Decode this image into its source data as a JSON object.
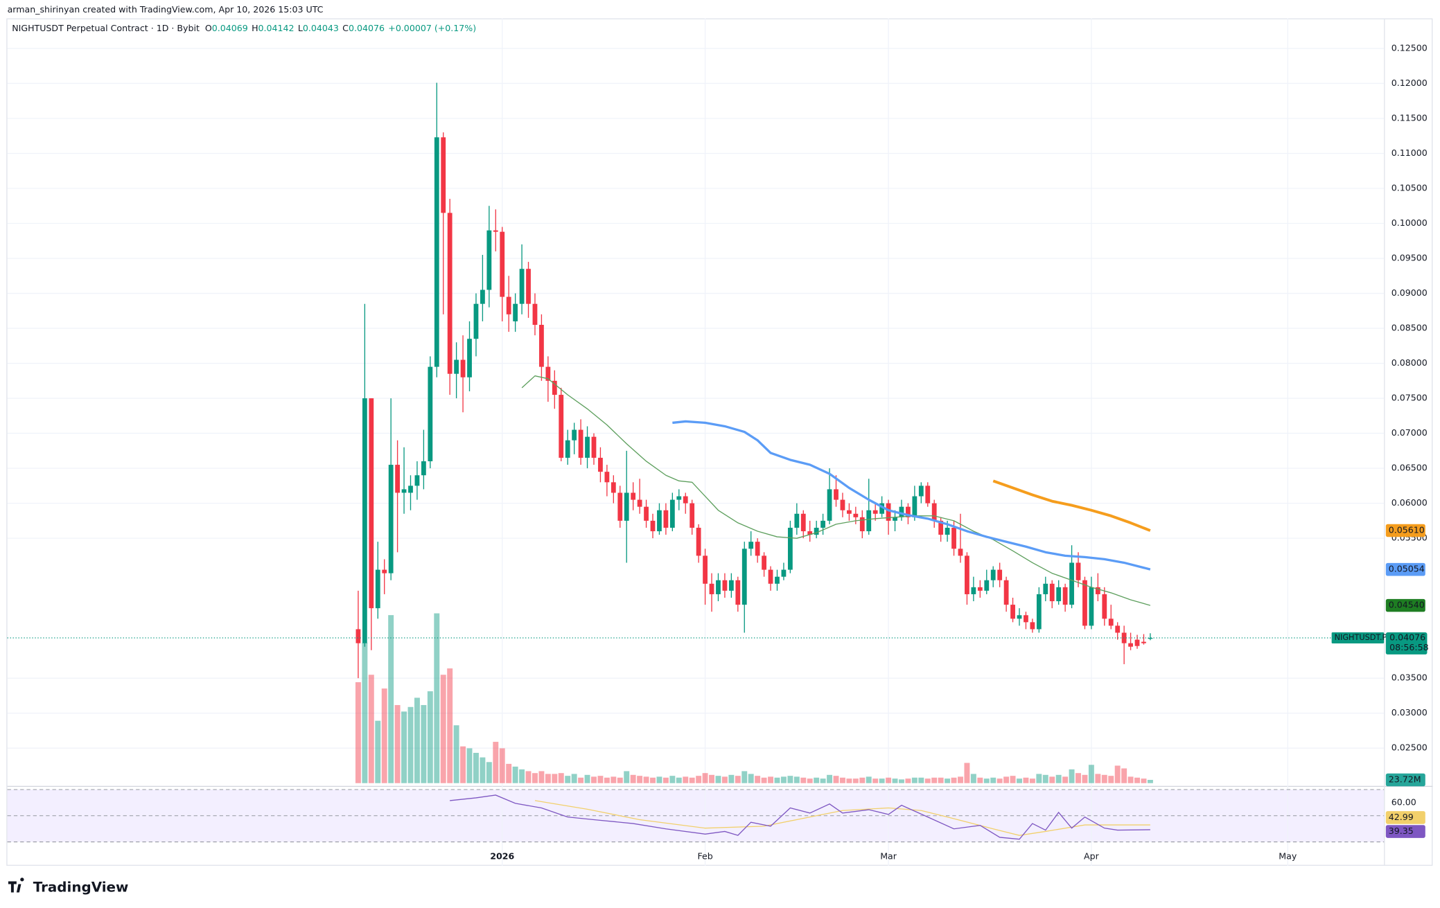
{
  "header": {
    "attribution": "arman_shirinyan created with TradingView.com, Apr 10, 2026 15:03 UTC"
  },
  "footer": {
    "logo": "TradingView"
  },
  "chart_data": {
    "type": "candlestick",
    "title": "NIGHTUSDT Perpetual Contract · 1D · Bybit",
    "ohlc_labels": [
      "O",
      "H",
      "L",
      "C"
    ],
    "change": "+0.00007",
    "change_pct": "(+0.17%)",
    "symbol_tag": "NIGHTUSDT.P",
    "countdown": "08:56:58",
    "up_color": "#089981",
    "down_color": "#f23645",
    "grid": true,
    "xlim": [
      -53.6,
      156.7
    ],
    "xticks": [
      {
        "value": 22,
        "label": "2026"
      },
      {
        "value": 53,
        "label": "Feb"
      },
      {
        "value": 81,
        "label": "Mar"
      },
      {
        "value": 112,
        "label": "Apr"
      },
      {
        "value": 142,
        "label": "May"
      }
    ],
    "ylim": [
      0.02,
      0.1293
    ],
    "yticks": [
      {
        "value": 0.125,
        "label": "0.12500"
      },
      {
        "value": 0.12,
        "label": "0.12000"
      },
      {
        "value": 0.115,
        "label": "0.11500"
      },
      {
        "value": 0.11,
        "label": "0.11000"
      },
      {
        "value": 0.105,
        "label": "0.10500"
      },
      {
        "value": 0.1,
        "label": "0.10000"
      },
      {
        "value": 0.095,
        "label": "0.09500"
      },
      {
        "value": 0.09,
        "label": "0.09000"
      },
      {
        "value": 0.085,
        "label": "0.08500"
      },
      {
        "value": 0.08,
        "label": "0.08000"
      },
      {
        "value": 0.075,
        "label": "0.07500"
      },
      {
        "value": 0.07,
        "label": "0.07000"
      },
      {
        "value": 0.065,
        "label": "0.06500"
      },
      {
        "value": 0.06,
        "label": "0.06000"
      },
      {
        "value": 0.055,
        "label": "0.05500"
      },
      {
        "value": 0.035,
        "label": "0.03500"
      },
      {
        "value": 0.03,
        "label": "0.03000"
      },
      {
        "value": 0.025,
        "label": "0.02500"
      }
    ],
    "candles": [
      [
        0.042,
        0.0475,
        0.035,
        0.04
      ],
      [
        0.04,
        0.0885,
        0.0395,
        0.075
      ],
      [
        0.075,
        0.075,
        0.039,
        0.045
      ],
      [
        0.045,
        0.0545,
        0.0435,
        0.0505
      ],
      [
        0.0505,
        0.052,
        0.047,
        0.05
      ],
      [
        0.05,
        0.075,
        0.049,
        0.0655
      ],
      [
        0.0655,
        0.069,
        0.053,
        0.0615
      ],
      [
        0.0615,
        0.068,
        0.0585,
        0.062
      ],
      [
        0.0615,
        0.064,
        0.059,
        0.0625
      ],
      [
        0.0625,
        0.066,
        0.0605,
        0.064
      ],
      [
        0.064,
        0.0705,
        0.062,
        0.066
      ],
      [
        0.066,
        0.081,
        0.065,
        0.0795
      ],
      [
        0.0795,
        0.1201,
        0.078,
        0.1123
      ],
      [
        0.1123,
        0.113,
        0.087,
        0.1015
      ],
      [
        0.1015,
        0.1035,
        0.0755,
        0.0785
      ],
      [
        0.0785,
        0.083,
        0.075,
        0.0805
      ],
      [
        0.0805,
        0.084,
        0.073,
        0.078
      ],
      [
        0.078,
        0.086,
        0.076,
        0.0835
      ],
      [
        0.0835,
        0.09,
        0.081,
        0.0885
      ],
      [
        0.0885,
        0.0955,
        0.086,
        0.0905
      ],
      [
        0.0905,
        0.1025,
        0.088,
        0.099
      ],
      [
        0.099,
        0.102,
        0.096,
        0.0988
      ],
      [
        0.0988,
        0.0995,
        0.086,
        0.0895
      ],
      [
        0.0895,
        0.0925,
        0.0845,
        0.087
      ],
      [
        0.086,
        0.09,
        0.0845,
        0.0885
      ],
      [
        0.0885,
        0.097,
        0.087,
        0.0935
      ],
      [
        0.0935,
        0.0945,
        0.0865,
        0.0885
      ],
      [
        0.0885,
        0.09,
        0.084,
        0.0855
      ],
      [
        0.0855,
        0.087,
        0.0775,
        0.0795
      ],
      [
        0.0795,
        0.081,
        0.0745,
        0.0775
      ],
      [
        0.0775,
        0.079,
        0.0735,
        0.0755
      ],
      [
        0.0755,
        0.0765,
        0.066,
        0.0665
      ],
      [
        0.0665,
        0.0705,
        0.0655,
        0.069
      ],
      [
        0.069,
        0.0715,
        0.067,
        0.0705
      ],
      [
        0.0705,
        0.072,
        0.0655,
        0.0665
      ],
      [
        0.0665,
        0.071,
        0.065,
        0.0695
      ],
      [
        0.0695,
        0.07,
        0.0655,
        0.0665
      ],
      [
        0.0665,
        0.068,
        0.063,
        0.0645
      ],
      [
        0.0645,
        0.0655,
        0.061,
        0.063
      ],
      [
        0.063,
        0.064,
        0.06,
        0.0615
      ],
      [
        0.0615,
        0.0625,
        0.0565,
        0.0575
      ],
      [
        0.0575,
        0.0675,
        0.0515,
        0.0615
      ],
      [
        0.0615,
        0.063,
        0.059,
        0.0605
      ],
      [
        0.0605,
        0.0635,
        0.0585,
        0.0595
      ],
      [
        0.0595,
        0.0605,
        0.0565,
        0.0575
      ],
      [
        0.0575,
        0.0585,
        0.055,
        0.056
      ],
      [
        0.056,
        0.06,
        0.0555,
        0.059
      ],
      [
        0.059,
        0.06,
        0.0555,
        0.0565
      ],
      [
        0.0565,
        0.0615,
        0.056,
        0.0605
      ],
      [
        0.0605,
        0.062,
        0.059,
        0.061
      ],
      [
        0.061,
        0.0615,
        0.0585,
        0.06
      ],
      [
        0.06,
        0.0605,
        0.0555,
        0.0565
      ],
      [
        0.0565,
        0.057,
        0.0515,
        0.0525
      ],
      [
        0.0525,
        0.0535,
        0.0455,
        0.0485
      ],
      [
        0.0485,
        0.05,
        0.0445,
        0.047
      ],
      [
        0.047,
        0.05,
        0.046,
        0.049
      ],
      [
        0.049,
        0.05,
        0.0465,
        0.0475
      ],
      [
        0.0475,
        0.05,
        0.0465,
        0.049
      ],
      [
        0.049,
        0.0495,
        0.0445,
        0.0455
      ],
      [
        0.0455,
        0.0545,
        0.0415,
        0.0535
      ],
      [
        0.0535,
        0.056,
        0.0525,
        0.0545
      ],
      [
        0.0545,
        0.055,
        0.0515,
        0.0525
      ],
      [
        0.0525,
        0.053,
        0.0495,
        0.0505
      ],
      [
        0.0505,
        0.051,
        0.0475,
        0.0485
      ],
      [
        0.0485,
        0.0505,
        0.0475,
        0.0495
      ],
      [
        0.0495,
        0.0515,
        0.049,
        0.0505
      ],
      [
        0.0505,
        0.0575,
        0.05,
        0.0565
      ],
      [
        0.0565,
        0.06,
        0.0555,
        0.0585
      ],
      [
        0.0585,
        0.059,
        0.055,
        0.056
      ],
      [
        0.056,
        0.0575,
        0.0545,
        0.0555
      ],
      [
        0.0555,
        0.0575,
        0.055,
        0.0565
      ],
      [
        0.0565,
        0.0585,
        0.0555,
        0.0575
      ],
      [
        0.0575,
        0.065,
        0.057,
        0.062
      ],
      [
        0.062,
        0.064,
        0.0595,
        0.0605
      ],
      [
        0.0605,
        0.0615,
        0.058,
        0.059
      ],
      [
        0.059,
        0.06,
        0.0575,
        0.0585
      ],
      [
        0.0585,
        0.0595,
        0.057,
        0.058
      ],
      [
        0.058,
        0.059,
        0.055,
        0.056
      ],
      [
        0.056,
        0.0635,
        0.0555,
        0.059
      ],
      [
        0.059,
        0.06,
        0.0575,
        0.0585
      ],
      [
        0.0585,
        0.061,
        0.058,
        0.06
      ],
      [
        0.06,
        0.0605,
        0.0555,
        0.0575
      ],
      [
        0.0575,
        0.059,
        0.056,
        0.058
      ],
      [
        0.058,
        0.0605,
        0.0575,
        0.0595
      ],
      [
        0.0595,
        0.06,
        0.057,
        0.058
      ],
      [
        0.058,
        0.0625,
        0.0575,
        0.061
      ],
      [
        0.061,
        0.063,
        0.06,
        0.0625
      ],
      [
        0.0625,
        0.063,
        0.0595,
        0.06
      ],
      [
        0.06,
        0.0605,
        0.0565,
        0.0575
      ],
      [
        0.0575,
        0.058,
        0.0545,
        0.0555
      ],
      [
        0.0555,
        0.0575,
        0.0545,
        0.0565
      ],
      [
        0.0565,
        0.0575,
        0.0525,
        0.0535
      ],
      [
        0.0535,
        0.0585,
        0.0515,
        0.0525
      ],
      [
        0.0525,
        0.053,
        0.0455,
        0.047
      ],
      [
        0.047,
        0.0495,
        0.046,
        0.048
      ],
      [
        0.048,
        0.049,
        0.0465,
        0.0475
      ],
      [
        0.0475,
        0.0505,
        0.047,
        0.049
      ],
      [
        0.049,
        0.051,
        0.048,
        0.0505
      ],
      [
        0.0505,
        0.0515,
        0.048,
        0.049
      ],
      [
        0.049,
        0.0495,
        0.0445,
        0.0455
      ],
      [
        0.0455,
        0.0465,
        0.043,
        0.0435
      ],
      [
        0.0435,
        0.045,
        0.0425,
        0.044
      ],
      [
        0.044,
        0.0445,
        0.042,
        0.043
      ],
      [
        0.043,
        0.0435,
        0.0415,
        0.042
      ],
      [
        0.042,
        0.048,
        0.0415,
        0.047
      ],
      [
        0.047,
        0.0495,
        0.046,
        0.0485
      ],
      [
        0.0485,
        0.049,
        0.045,
        0.046
      ],
      [
        0.046,
        0.049,
        0.0455,
        0.048
      ],
      [
        0.048,
        0.0485,
        0.0445,
        0.0455
      ],
      [
        0.0455,
        0.054,
        0.045,
        0.0515
      ],
      [
        0.0515,
        0.053,
        0.048,
        0.049
      ],
      [
        0.049,
        0.0495,
        0.042,
        0.0425
      ],
      [
        0.0425,
        0.0495,
        0.042,
        0.048
      ],
      [
        0.048,
        0.05,
        0.046,
        0.047
      ],
      [
        0.047,
        0.048,
        0.0425,
        0.0435
      ],
      [
        0.0435,
        0.0455,
        0.042,
        0.0425
      ],
      [
        0.0425,
        0.043,
        0.0405,
        0.0415
      ],
      [
        0.0415,
        0.0425,
        0.037,
        0.04
      ],
      [
        0.04,
        0.0415,
        0.039,
        0.0395
      ],
      [
        0.0405,
        0.0412,
        0.0392,
        0.0396
      ],
      [
        0.0402,
        0.0413,
        0.0398,
        0.04
      ],
      [
        0.04069,
        0.04142,
        0.04043,
        0.04076
      ]
    ],
    "volume": {
      "ylim": [
        0,
        5553
      ],
      "value_label": "23.72M",
      "values": [
        733,
        1020,
        787,
        453,
        687,
        1220,
        567,
        520,
        553,
        620,
        567,
        667,
        1233,
        787,
        833,
        420,
        267,
        253,
        220,
        187,
        153,
        300,
        253,
        140,
        120,
        100,
        87,
        73,
        87,
        67,
        67,
        73,
        53,
        67,
        40,
        60,
        47,
        53,
        40,
        47,
        40,
        87,
        60,
        53,
        47,
        40,
        47,
        40,
        53,
        40,
        47,
        40,
        53,
        73,
        60,
        53,
        47,
        60,
        53,
        87,
        67,
        53,
        40,
        47,
        40,
        47,
        53,
        47,
        40,
        33,
        40,
        33,
        60,
        53,
        40,
        33,
        33,
        40,
        47,
        33,
        33,
        40,
        33,
        27,
        33,
        40,
        40,
        33,
        40,
        40,
        33,
        40,
        47,
        147,
        67,
        40,
        33,
        40,
        33,
        47,
        53,
        33,
        40,
        33,
        67,
        60,
        47,
        60,
        47,
        100,
        73,
        60,
        133,
        67,
        60,
        53,
        127,
        107,
        47,
        40,
        33,
        23.72
      ]
    },
    "overlays": [
      {
        "color": "#5d9f5d",
        "width": 1,
        "badge_color": "#1e7d22",
        "value_label": "0.04540",
        "x": [
          25,
          27,
          29,
          32,
          35,
          38,
          41,
          44,
          47,
          49,
          51,
          53,
          55,
          58,
          61,
          64,
          67,
          70,
          73,
          76,
          79,
          82,
          85,
          88,
          91,
          94,
          97,
          100,
          103,
          106,
          109,
          112,
          115,
          118,
          121
        ],
        "values": [
          0.0765,
          0.0782,
          0.0778,
          0.0755,
          0.0735,
          0.0712,
          0.0685,
          0.066,
          0.064,
          0.0632,
          0.063,
          0.061,
          0.059,
          0.0572,
          0.056,
          0.0552,
          0.055,
          0.0558,
          0.057,
          0.0575,
          0.0578,
          0.058,
          0.0582,
          0.0582,
          0.0575,
          0.056,
          0.0548,
          0.0532,
          0.0515,
          0.05,
          0.049,
          0.048,
          0.0472,
          0.0462,
          0.0454
        ]
      },
      {
        "color": "#5b9cf6",
        "width": 2.5,
        "badge_color": "#5b9cf6",
        "value_label": "0.05054",
        "x": [
          48,
          50,
          53,
          56,
          59,
          61,
          63,
          66,
          69,
          72,
          75,
          78,
          81,
          84,
          87,
          90,
          93,
          96,
          99,
          102,
          105,
          108,
          111,
          114,
          117,
          121
        ],
        "values": [
          0.0715,
          0.0717,
          0.0715,
          0.071,
          0.0702,
          0.069,
          0.0672,
          0.0662,
          0.0655,
          0.0642,
          0.0622,
          0.0605,
          0.059,
          0.0583,
          0.0578,
          0.057,
          0.056,
          0.0552,
          0.0545,
          0.0538,
          0.053,
          0.0525,
          0.0523,
          0.052,
          0.0515,
          0.05054
        ]
      },
      {
        "color": "#f59d1d",
        "width": 3,
        "badge_color": "#f59d1d",
        "value_label": "0.05610",
        "x": [
          97,
          100,
          103,
          106,
          109,
          112,
          115,
          118,
          121
        ],
        "values": [
          0.0632,
          0.0622,
          0.0612,
          0.0603,
          0.0597,
          0.059,
          0.0582,
          0.0572,
          0.0561
        ]
      }
    ],
    "rsi": {
      "ylim": [
        30,
        70
      ],
      "yticks": [
        {
          "value": 60,
          "label": "60.00"
        }
      ],
      "series": [
        {
          "color": "#f2d06b",
          "text_color": "#131722",
          "x": [
            27,
            35,
            43,
            53,
            62,
            69,
            74,
            81,
            86,
            90,
            97,
            101,
            105,
            111,
            121
          ],
          "values": [
            61.6,
            55,
            47,
            40.5,
            42,
            49,
            54,
            56,
            54,
            49,
            40,
            35,
            38,
            43,
            42.99
          ]
        },
        {
          "color": "#7e57c2",
          "text_color": "#ffffff",
          "x": [
            14,
            18,
            21,
            24,
            28,
            32,
            36,
            42,
            47,
            53,
            56,
            58,
            60,
            63,
            66,
            69,
            72,
            74,
            78,
            81,
            83,
            87,
            91,
            95,
            98,
            101,
            103,
            105,
            107,
            109,
            111,
            114,
            116,
            121
          ],
          "values": [
            61.6,
            63.7,
            65.8,
            59.5,
            56,
            49,
            47,
            44,
            40,
            36,
            38,
            35,
            45,
            42,
            56,
            52,
            59,
            52,
            54.6,
            51,
            58,
            49,
            40,
            42.6,
            33.5,
            32,
            44,
            39,
            52.5,
            40.5,
            49,
            40.5,
            39,
            39.35
          ]
        }
      ]
    }
  }
}
